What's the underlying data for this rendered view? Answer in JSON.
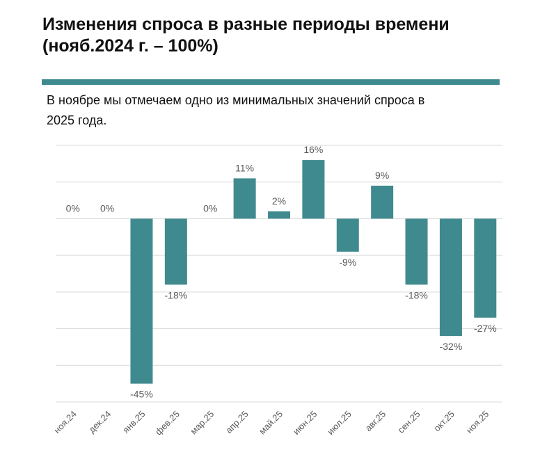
{
  "chart_data": {
    "type": "bar",
    "title": "Изменения спроса в разные периоды времени (нояб.2024 г. – 100%)",
    "subtitle": "В ноябре мы отмечаем одно из минимальных значений спроса в 2025 года.",
    "categories": [
      "ноя.24",
      "дек.24",
      "янв.25",
      "фев.25",
      "мар.25",
      "апр.25",
      "май.25",
      "июн.25",
      "июл.25",
      "авг.25",
      "сен.25",
      "окт.25",
      "ноя.25"
    ],
    "values": [
      0,
      0,
      -45,
      -18,
      0,
      11,
      2,
      16,
      -9,
      9,
      -18,
      -32,
      -27
    ],
    "data_labels": [
      "0%",
      "0%",
      "-45%",
      "-18%",
      "0%",
      "11%",
      "2%",
      "16%",
      "-9%",
      "9%",
      "-18%",
      "-32%",
      "-27%"
    ],
    "xlabel": "",
    "ylabel": "",
    "ylim": [
      -50,
      20
    ],
    "grid": true,
    "legend": "none",
    "bar_color": "#3f8a8e",
    "accent_color": "#3f8a8e"
  }
}
